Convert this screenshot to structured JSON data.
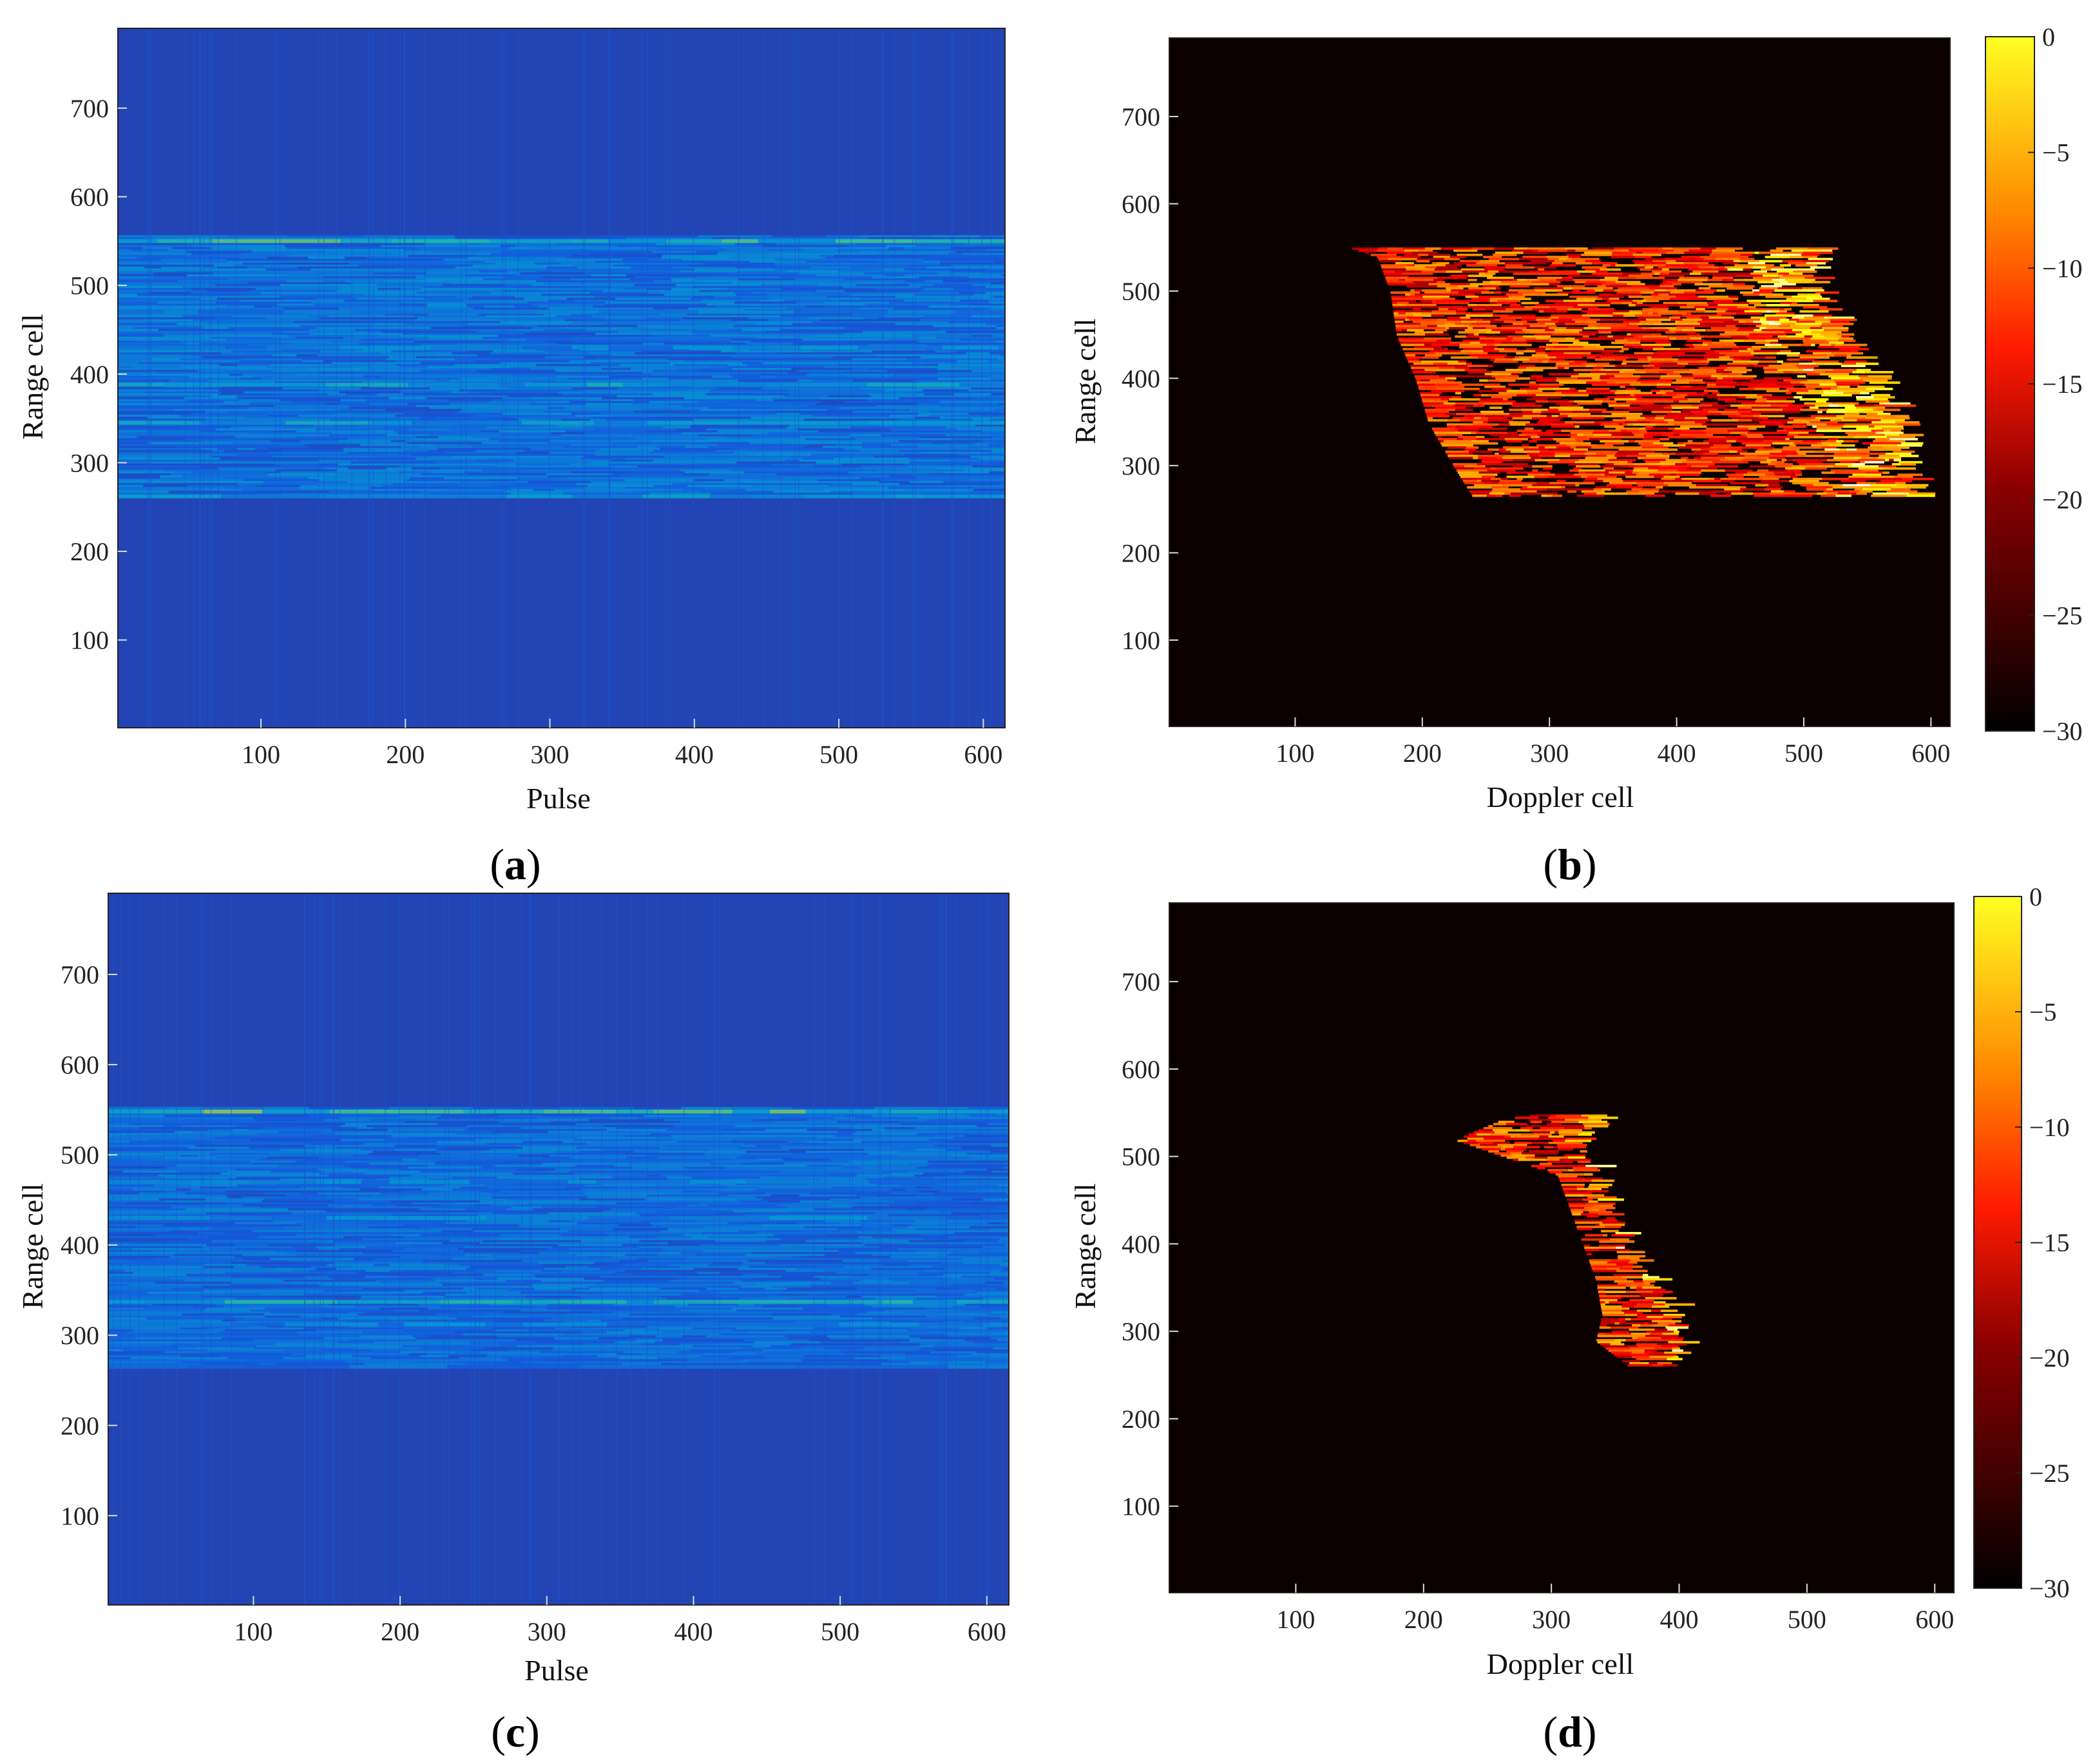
{
  "chart_data": [
    {
      "panel": "a",
      "type": "heatmap",
      "caption_open": "(",
      "caption_letter": "a",
      "caption_close": ")",
      "xlabel": "Pulse",
      "ylabel": "Range cell",
      "xlim": [
        1,
        615
      ],
      "ylim": [
        1,
        790
      ],
      "xticks": [
        100,
        200,
        300,
        400,
        500,
        600
      ],
      "yticks": [
        100,
        200,
        300,
        400,
        500,
        600,
        700
      ],
      "colormap": "parula",
      "grid": false,
      "background_level": 0.08,
      "bands": [
        {
          "range_cell": 550,
          "level": 0.55,
          "note": "strong top edge"
        },
        {
          "range_cell": 470,
          "level": 0.3
        },
        {
          "range_cell": 430,
          "level": 0.32
        },
        {
          "range_cell": 388,
          "level": 0.42
        },
        {
          "range_cell": 345,
          "level": 0.4
        },
        {
          "range_cell": 262,
          "level": 0.35
        }
      ],
      "texture_range": [
        262,
        555
      ],
      "texture_level": 0.25
    },
    {
      "panel": "b",
      "type": "heatmap",
      "caption_open": "(",
      "caption_letter": "b",
      "caption_close": ")",
      "xlabel": "Doppler cell",
      "ylabel": "Range cell",
      "xlim": [
        1,
        615
      ],
      "ylim": [
        1,
        790
      ],
      "xticks": [
        100,
        200,
        300,
        400,
        500,
        600
      ],
      "yticks": [
        100,
        200,
        300,
        400,
        500,
        600,
        700
      ],
      "colormap": "hot",
      "grid": false,
      "colorbar": {
        "ticks": [
          0,
          -5,
          -10,
          -15,
          -20,
          -25,
          -30
        ],
        "lim": [
          -30,
          0
        ],
        "labels": [
          "0",
          "−5",
          "−10",
          "−15",
          "−20",
          "−25",
          "−30"
        ]
      },
      "region": [
        {
          "range_cell": 550,
          "doppler_left": 145,
          "doppler_right": 520
        },
        {
          "range_cell": 540,
          "doppler_left": 165,
          "doppler_right": 505
        },
        {
          "range_cell": 500,
          "doppler_left": 175,
          "doppler_right": 510
        },
        {
          "range_cell": 450,
          "doppler_left": 180,
          "doppler_right": 530
        },
        {
          "range_cell": 400,
          "doppler_left": 195,
          "doppler_right": 555
        },
        {
          "range_cell": 350,
          "doppler_left": 205,
          "doppler_right": 575
        },
        {
          "range_cell": 300,
          "doppler_left": 225,
          "doppler_right": 580
        },
        {
          "range_cell": 265,
          "doppler_left": 240,
          "doppler_right": 585
        }
      ]
    },
    {
      "panel": "c",
      "type": "heatmap",
      "caption_open": "(",
      "caption_letter": "c",
      "caption_close": ")",
      "xlabel": "Pulse",
      "ylabel": "Range cell",
      "xlim": [
        1,
        615
      ],
      "ylim": [
        1,
        790
      ],
      "xticks": [
        100,
        200,
        300,
        400,
        500,
        600
      ],
      "yticks": [
        100,
        200,
        300,
        400,
        500,
        600,
        700
      ],
      "colormap": "parula",
      "grid": false,
      "background_level": 0.08,
      "bands": [
        {
          "range_cell": 548,
          "level": 0.6,
          "note": "strong top edge"
        },
        {
          "range_cell": 470,
          "level": 0.3
        },
        {
          "range_cell": 430,
          "level": 0.3
        },
        {
          "range_cell": 337,
          "level": 0.45
        },
        {
          "range_cell": 312,
          "level": 0.3
        },
        {
          "range_cell": 265,
          "level": 0.25
        }
      ],
      "texture_range": [
        265,
        552
      ],
      "texture_level": 0.22
    },
    {
      "panel": "d",
      "type": "heatmap",
      "caption_open": "(",
      "caption_letter": "d",
      "caption_close": ")",
      "xlabel": "Doppler cell",
      "ylabel": "Range cell",
      "xlim": [
        1,
        615
      ],
      "ylim": [
        1,
        790
      ],
      "xticks": [
        100,
        200,
        300,
        400,
        500,
        600
      ],
      "yticks": [
        100,
        200,
        300,
        400,
        500,
        600,
        700
      ],
      "colormap": "hot",
      "grid": false,
      "colorbar": {
        "ticks": [
          0,
          -5,
          -10,
          -15,
          -20,
          -25,
          -30
        ],
        "lim": [
          -30,
          0
        ],
        "labels": [
          "0",
          "−5",
          "−10",
          "−15",
          "−20",
          "−25",
          "−30"
        ]
      },
      "region": [
        {
          "range_cell": 548,
          "doppler_left": 270,
          "doppler_right": 340
        },
        {
          "range_cell": 520,
          "doppler_left": 225,
          "doppler_right": 320
        },
        {
          "range_cell": 480,
          "doppler_left": 305,
          "doppler_right": 330
        },
        {
          "range_cell": 440,
          "doppler_left": 315,
          "doppler_right": 345
        },
        {
          "range_cell": 400,
          "doppler_left": 325,
          "doppler_right": 355
        },
        {
          "range_cell": 360,
          "doppler_left": 335,
          "doppler_right": 375
        },
        {
          "range_cell": 320,
          "doppler_left": 340,
          "doppler_right": 395
        },
        {
          "range_cell": 290,
          "doppler_left": 335,
          "doppler_right": 400
        },
        {
          "range_cell": 262,
          "doppler_left": 360,
          "doppler_right": 395
        }
      ]
    }
  ]
}
